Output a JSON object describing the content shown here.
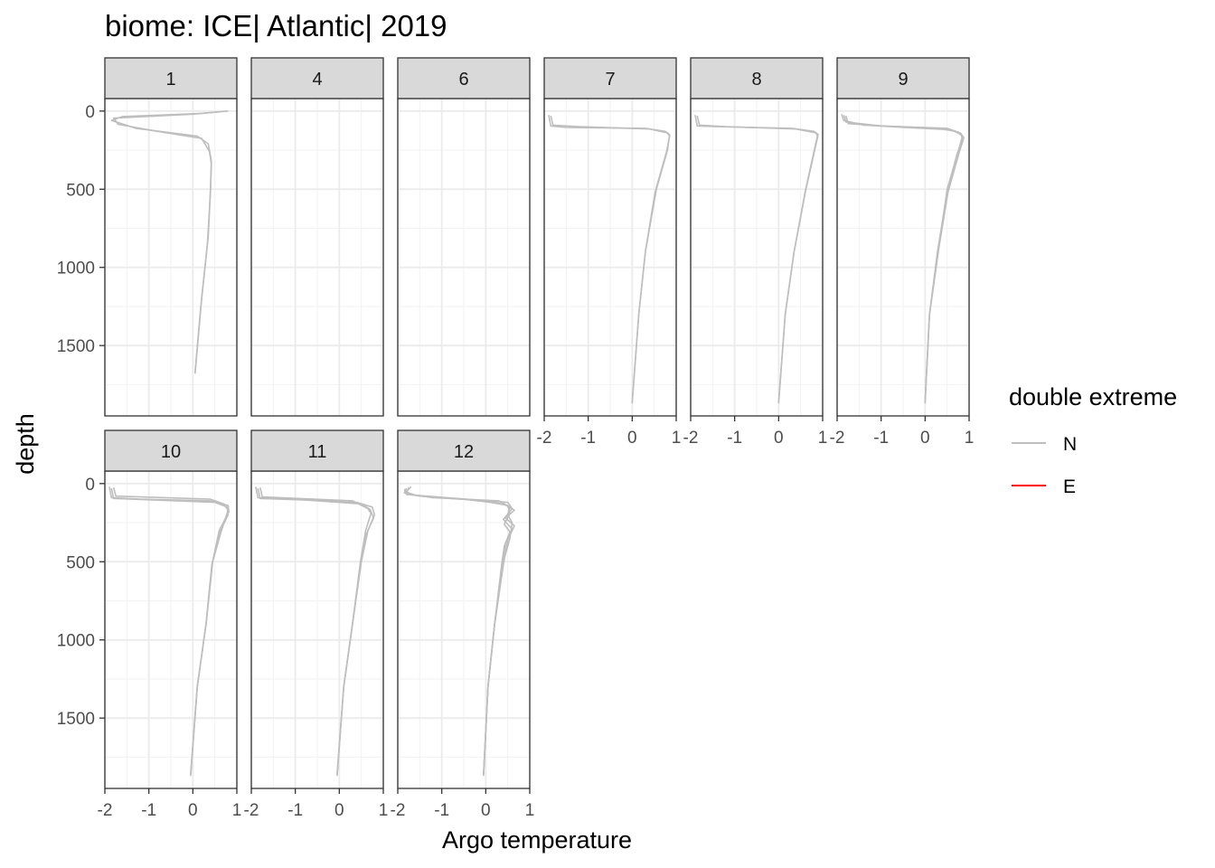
{
  "chart_data": {
    "type": "line",
    "title": "biome: ICE| Atlantic| 2019",
    "xlabel": "Argo temperature",
    "ylabel": "depth",
    "xlim": [
      -2,
      1
    ],
    "ylim": [
      1950,
      -80
    ],
    "y_reversed": true,
    "x_ticks": [
      -2,
      -1,
      0,
      1
    ],
    "y_ticks": [
      0,
      500,
      1000,
      1500
    ],
    "grid": true,
    "legend": {
      "title": "double extreme",
      "position": "right",
      "entries": [
        {
          "label": "N",
          "color": "#bebebe"
        },
        {
          "label": "E",
          "color": "#ff0000"
        }
      ]
    },
    "panels": [
      {
        "label": "1",
        "series": [
          {
            "name": "N",
            "points": [
              [
                0.8,
                0
              ],
              [
                0.2,
                15
              ],
              [
                -1.6,
                35
              ],
              [
                -1.85,
                60
              ],
              [
                -1.3,
                110
              ],
              [
                0.1,
                160
              ],
              [
                0.35,
                210
              ],
              [
                0.42,
                320
              ],
              [
                0.4,
                500
              ],
              [
                0.35,
                800
              ],
              [
                0.2,
                1200
              ],
              [
                0.05,
                1680
              ]
            ]
          },
          {
            "name": "N",
            "points": [
              [
                0.6,
                5
              ],
              [
                0.0,
                20
              ],
              [
                -1.8,
                45
              ],
              [
                -1.7,
                85
              ],
              [
                -0.8,
                130
              ],
              [
                0.2,
                175
              ],
              [
                0.38,
                260
              ],
              [
                0.42,
                340
              ],
              [
                0.4,
                520
              ],
              [
                0.33,
                850
              ],
              [
                0.18,
                1250
              ],
              [
                0.05,
                1670
              ]
            ]
          }
        ]
      },
      {
        "label": "4",
        "series": []
      },
      {
        "label": "6",
        "series": []
      },
      {
        "label": "7",
        "series": [
          {
            "name": "N",
            "points": [
              [
                -1.9,
                25
              ],
              [
                -1.85,
                95
              ],
              [
                -1.5,
                105
              ],
              [
                0.3,
                110
              ],
              [
                0.75,
                130
              ],
              [
                0.85,
                150
              ],
              [
                0.8,
                250
              ],
              [
                0.55,
                500
              ],
              [
                0.3,
                900
              ],
              [
                0.15,
                1300
              ],
              [
                0.0,
                1870
              ]
            ]
          },
          {
            "name": "N",
            "points": [
              [
                -1.85,
                30
              ],
              [
                -1.8,
                90
              ],
              [
                -1.2,
                100
              ],
              [
                0.4,
                115
              ],
              [
                0.8,
                140
              ],
              [
                0.85,
                160
              ],
              [
                0.78,
                260
              ],
              [
                0.52,
                520
              ],
              [
                0.3,
                900
              ],
              [
                0.15,
                1300
              ],
              [
                0.0,
                1860
              ]
            ]
          }
        ]
      },
      {
        "label": "8",
        "series": [
          {
            "name": "N",
            "points": [
              [
                -1.9,
                25
              ],
              [
                -1.85,
                95
              ],
              [
                -1.4,
                100
              ],
              [
                0.3,
                110
              ],
              [
                0.8,
                130
              ],
              [
                0.9,
                150
              ],
              [
                0.82,
                250
              ],
              [
                0.62,
                500
              ],
              [
                0.35,
                900
              ],
              [
                0.15,
                1300
              ],
              [
                0.0,
                1870
              ]
            ]
          },
          {
            "name": "N",
            "points": [
              [
                -1.85,
                30
              ],
              [
                -1.8,
                90
              ],
              [
                -1.2,
                100
              ],
              [
                0.4,
                115
              ],
              [
                0.85,
                140
              ],
              [
                0.88,
                160
              ],
              [
                0.8,
                260
              ],
              [
                0.6,
                520
              ],
              [
                0.35,
                900
              ],
              [
                0.15,
                1300
              ],
              [
                0.0,
                1860
              ]
            ]
          }
        ]
      },
      {
        "label": "9",
        "series": [
          {
            "name": "N",
            "points": [
              [
                -1.9,
                20
              ],
              [
                -1.85,
                60
              ],
              [
                -1.4,
                90
              ],
              [
                0.3,
                110
              ],
              [
                0.7,
                130
              ],
              [
                0.85,
                160
              ],
              [
                0.75,
                260
              ],
              [
                0.5,
                500
              ],
              [
                0.3,
                900
              ],
              [
                0.1,
                1300
              ],
              [
                0.0,
                1870
              ]
            ]
          },
          {
            "name": "N",
            "points": [
              [
                -1.85,
                25
              ],
              [
                -1.8,
                70
              ],
              [
                -1.0,
                95
              ],
              [
                0.5,
                110
              ],
              [
                0.8,
                140
              ],
              [
                0.88,
                170
              ],
              [
                0.78,
                260
              ],
              [
                0.52,
                520
              ],
              [
                0.3,
                900
              ],
              [
                0.1,
                1300
              ],
              [
                0.0,
                1860
              ]
            ]
          },
          {
            "name": "N",
            "points": [
              [
                -1.8,
                30
              ],
              [
                -1.75,
                80
              ],
              [
                -0.8,
                100
              ],
              [
                0.6,
                120
              ],
              [
                0.82,
                150
              ],
              [
                0.85,
                180
              ],
              [
                0.72,
                280
              ],
              [
                0.5,
                520
              ],
              [
                0.28,
                900
              ],
              [
                0.1,
                1300
              ],
              [
                0.0,
                1860
              ]
            ]
          }
        ]
      },
      {
        "label": "10",
        "series": [
          {
            "name": "N",
            "points": [
              [
                -1.9,
                20
              ],
              [
                -1.85,
                90
              ],
              [
                -1.2,
                100
              ],
              [
                0.4,
                110
              ],
              [
                0.8,
                140
              ],
              [
                0.82,
                180
              ],
              [
                0.6,
                300
              ],
              [
                0.45,
                500
              ],
              [
                0.3,
                900
              ],
              [
                0.1,
                1300
              ],
              [
                -0.05,
                1870
              ]
            ]
          },
          {
            "name": "N",
            "points": [
              [
                -1.85,
                30
              ],
              [
                -1.8,
                95
              ],
              [
                -0.9,
                105
              ],
              [
                0.5,
                120
              ],
              [
                0.78,
                150
              ],
              [
                0.8,
                200
              ],
              [
                0.6,
                320
              ],
              [
                0.43,
                520
              ],
              [
                0.3,
                900
              ],
              [
                0.1,
                1300
              ],
              [
                -0.05,
                1860
              ]
            ]
          },
          {
            "name": "N",
            "points": [
              [
                -1.8,
                25
              ],
              [
                -1.75,
                80
              ],
              [
                0.4,
                100
              ],
              [
                0.7,
                130
              ],
              [
                0.8,
                170
              ],
              [
                0.65,
                300
              ],
              [
                0.45,
                500
              ],
              [
                0.3,
                900
              ],
              [
                0.1,
                1300
              ],
              [
                -0.05,
                1860
              ]
            ]
          }
        ]
      },
      {
        "label": "11",
        "series": [
          {
            "name": "N",
            "points": [
              [
                -1.9,
                20
              ],
              [
                -1.85,
                90
              ],
              [
                -1.0,
                100
              ],
              [
                0.4,
                120
              ],
              [
                0.75,
                150
              ],
              [
                0.8,
                200
              ],
              [
                0.65,
                300
              ],
              [
                0.5,
                500
              ],
              [
                0.3,
                900
              ],
              [
                0.1,
                1300
              ],
              [
                -0.05,
                1870
              ]
            ]
          },
          {
            "name": "N",
            "points": [
              [
                -1.85,
                30
              ],
              [
                -1.8,
                95
              ],
              [
                -0.8,
                105
              ],
              [
                0.5,
                130
              ],
              [
                0.7,
                165
              ],
              [
                0.78,
                220
              ],
              [
                0.62,
                320
              ],
              [
                0.48,
                520
              ],
              [
                0.3,
                900
              ],
              [
                0.1,
                1300
              ],
              [
                -0.05,
                1860
              ]
            ]
          },
          {
            "name": "N",
            "points": [
              [
                -1.8,
                25
              ],
              [
                -1.75,
                85
              ],
              [
                0.3,
                110
              ],
              [
                0.65,
                160
              ],
              [
                0.72,
                190
              ],
              [
                0.6,
                300
              ],
              [
                0.48,
                500
              ],
              [
                0.3,
                900
              ],
              [
                0.1,
                1300
              ],
              [
                -0.05,
                1860
              ]
            ]
          }
        ]
      },
      {
        "label": "12",
        "series": [
          {
            "name": "N",
            "points": [
              [
                -1.7,
                20
              ],
              [
                -1.8,
                50
              ],
              [
                -1.7,
                70
              ],
              [
                -1.2,
                90
              ],
              [
                0.3,
                110
              ],
              [
                0.55,
                150
              ],
              [
                0.5,
                200
              ],
              [
                0.6,
                250
              ],
              [
                0.55,
                350
              ],
              [
                0.4,
                500
              ],
              [
                0.2,
                900
              ],
              [
                0.05,
                1300
              ],
              [
                -0.05,
                1870
              ]
            ]
          },
          {
            "name": "N",
            "points": [
              [
                -1.8,
                30
              ],
              [
                -1.85,
                60
              ],
              [
                -1.5,
                80
              ],
              [
                -0.5,
                100
              ],
              [
                0.4,
                130
              ],
              [
                0.65,
                170
              ],
              [
                0.45,
                220
              ],
              [
                0.65,
                270
              ],
              [
                0.5,
                360
              ],
              [
                0.4,
                520
              ],
              [
                0.2,
                900
              ],
              [
                0.05,
                1300
              ],
              [
                -0.05,
                1860
              ]
            ]
          },
          {
            "name": "N",
            "points": [
              [
                -1.75,
                25
              ],
              [
                -1.8,
                55
              ],
              [
                -1.6,
                75
              ],
              [
                -0.8,
                95
              ],
              [
                0.5,
                120
              ],
              [
                0.6,
                160
              ],
              [
                0.4,
                230
              ],
              [
                0.6,
                290
              ],
              [
                0.45,
                380
              ],
              [
                0.38,
                520
              ],
              [
                0.2,
                900
              ],
              [
                0.05,
                1300
              ],
              [
                -0.05,
                1860
              ]
            ]
          },
          {
            "name": "N",
            "points": [
              [
                -1.85,
                35
              ],
              [
                -1.8,
                70
              ],
              [
                -0.2,
                105
              ],
              [
                0.5,
                140
              ],
              [
                0.55,
                190
              ],
              [
                0.42,
                260
              ],
              [
                0.55,
                310
              ],
              [
                0.42,
                400
              ],
              [
                0.36,
                520
              ],
              [
                0.2,
                900
              ],
              [
                0.05,
                1300
              ],
              [
                -0.05,
                1860
              ]
            ]
          }
        ]
      }
    ]
  }
}
